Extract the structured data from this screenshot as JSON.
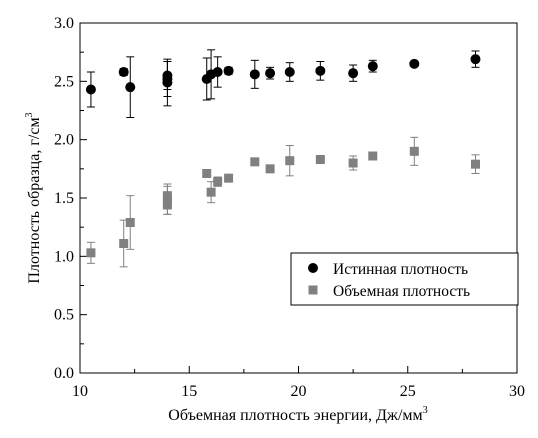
{
  "chart_data": {
    "type": "scatter",
    "xlabel": "Объемная плотность энергии, Дж/мм",
    "xlabel_sup": "3",
    "ylabel": "Плотность образца, г/см",
    "ylabel_sup": "3",
    "xlim": [
      10,
      30
    ],
    "ylim": [
      0.0,
      3.0
    ],
    "x_ticks": [
      "10",
      "15",
      "20",
      "25",
      "30"
    ],
    "y_ticks": [
      "0.0",
      "0.5",
      "1.0",
      "1.5",
      "2.0",
      "2.5",
      "3.0"
    ],
    "x_tick_values": [
      10,
      15,
      20,
      25,
      30
    ],
    "y_tick_values": [
      0.0,
      0.5,
      1.0,
      1.5,
      2.0,
      2.5,
      3.0
    ],
    "grid": false,
    "legend_position": "lower-right",
    "series": [
      {
        "name": "Истинная плотность",
        "marker": "circle",
        "color": "#000000",
        "points": [
          {
            "x": 10.5,
            "y": 2.43,
            "err": 0.15
          },
          {
            "x": 12.0,
            "y": 2.58,
            "err": 0.03
          },
          {
            "x": 12.3,
            "y": 2.45,
            "err": 0.26
          },
          {
            "x": 14.0,
            "y": 2.55,
            "err": 0.12
          },
          {
            "x": 14.0,
            "y": 2.52,
            "err": 0.15
          },
          {
            "x": 14.0,
            "y": 2.49,
            "err": 0.2
          },
          {
            "x": 15.8,
            "y": 2.52,
            "err": 0.18
          },
          {
            "x": 16.0,
            "y": 2.56,
            "err": 0.21
          },
          {
            "x": 16.3,
            "y": 2.58,
            "err": 0.13
          },
          {
            "x": 16.8,
            "y": 2.59,
            "err": 0.03
          },
          {
            "x": 18.0,
            "y": 2.56,
            "err": 0.12
          },
          {
            "x": 18.7,
            "y": 2.57,
            "err": 0.05
          },
          {
            "x": 19.6,
            "y": 2.58,
            "err": 0.08
          },
          {
            "x": 21.0,
            "y": 2.59,
            "err": 0.08
          },
          {
            "x": 22.5,
            "y": 2.57,
            "err": 0.07
          },
          {
            "x": 23.4,
            "y": 2.63,
            "err": 0.05
          },
          {
            "x": 25.3,
            "y": 2.65,
            "err": 0.0
          },
          {
            "x": 28.1,
            "y": 2.69,
            "err": 0.07
          }
        ]
      },
      {
        "name": "Объемная плотность",
        "marker": "square",
        "color": "#808080",
        "points": [
          {
            "x": 10.5,
            "y": 1.03,
            "err": 0.09
          },
          {
            "x": 12.0,
            "y": 1.11,
            "err": 0.2
          },
          {
            "x": 12.3,
            "y": 1.29,
            "err": 0.23
          },
          {
            "x": 14.0,
            "y": 1.52,
            "err": 0.1
          },
          {
            "x": 14.0,
            "y": 1.48,
            "err": 0.12
          },
          {
            "x": 14.0,
            "y": 1.44,
            "err": 0.08
          },
          {
            "x": 15.8,
            "y": 1.71,
            "err": 0.03
          },
          {
            "x": 16.0,
            "y": 1.55,
            "err": 0.09
          },
          {
            "x": 16.3,
            "y": 1.64,
            "err": 0.04
          },
          {
            "x": 16.8,
            "y": 1.67,
            "err": 0.03
          },
          {
            "x": 18.0,
            "y": 1.81,
            "err": 0.03
          },
          {
            "x": 18.7,
            "y": 1.75,
            "err": 0.03
          },
          {
            "x": 19.6,
            "y": 1.82,
            "err": 0.13
          },
          {
            "x": 21.0,
            "y": 1.83,
            "err": 0.03
          },
          {
            "x": 22.5,
            "y": 1.8,
            "err": 0.06
          },
          {
            "x": 23.4,
            "y": 1.86,
            "err": 0.03
          },
          {
            "x": 25.3,
            "y": 1.9,
            "err": 0.12
          },
          {
            "x": 28.1,
            "y": 1.79,
            "err": 0.08
          }
        ]
      }
    ]
  }
}
